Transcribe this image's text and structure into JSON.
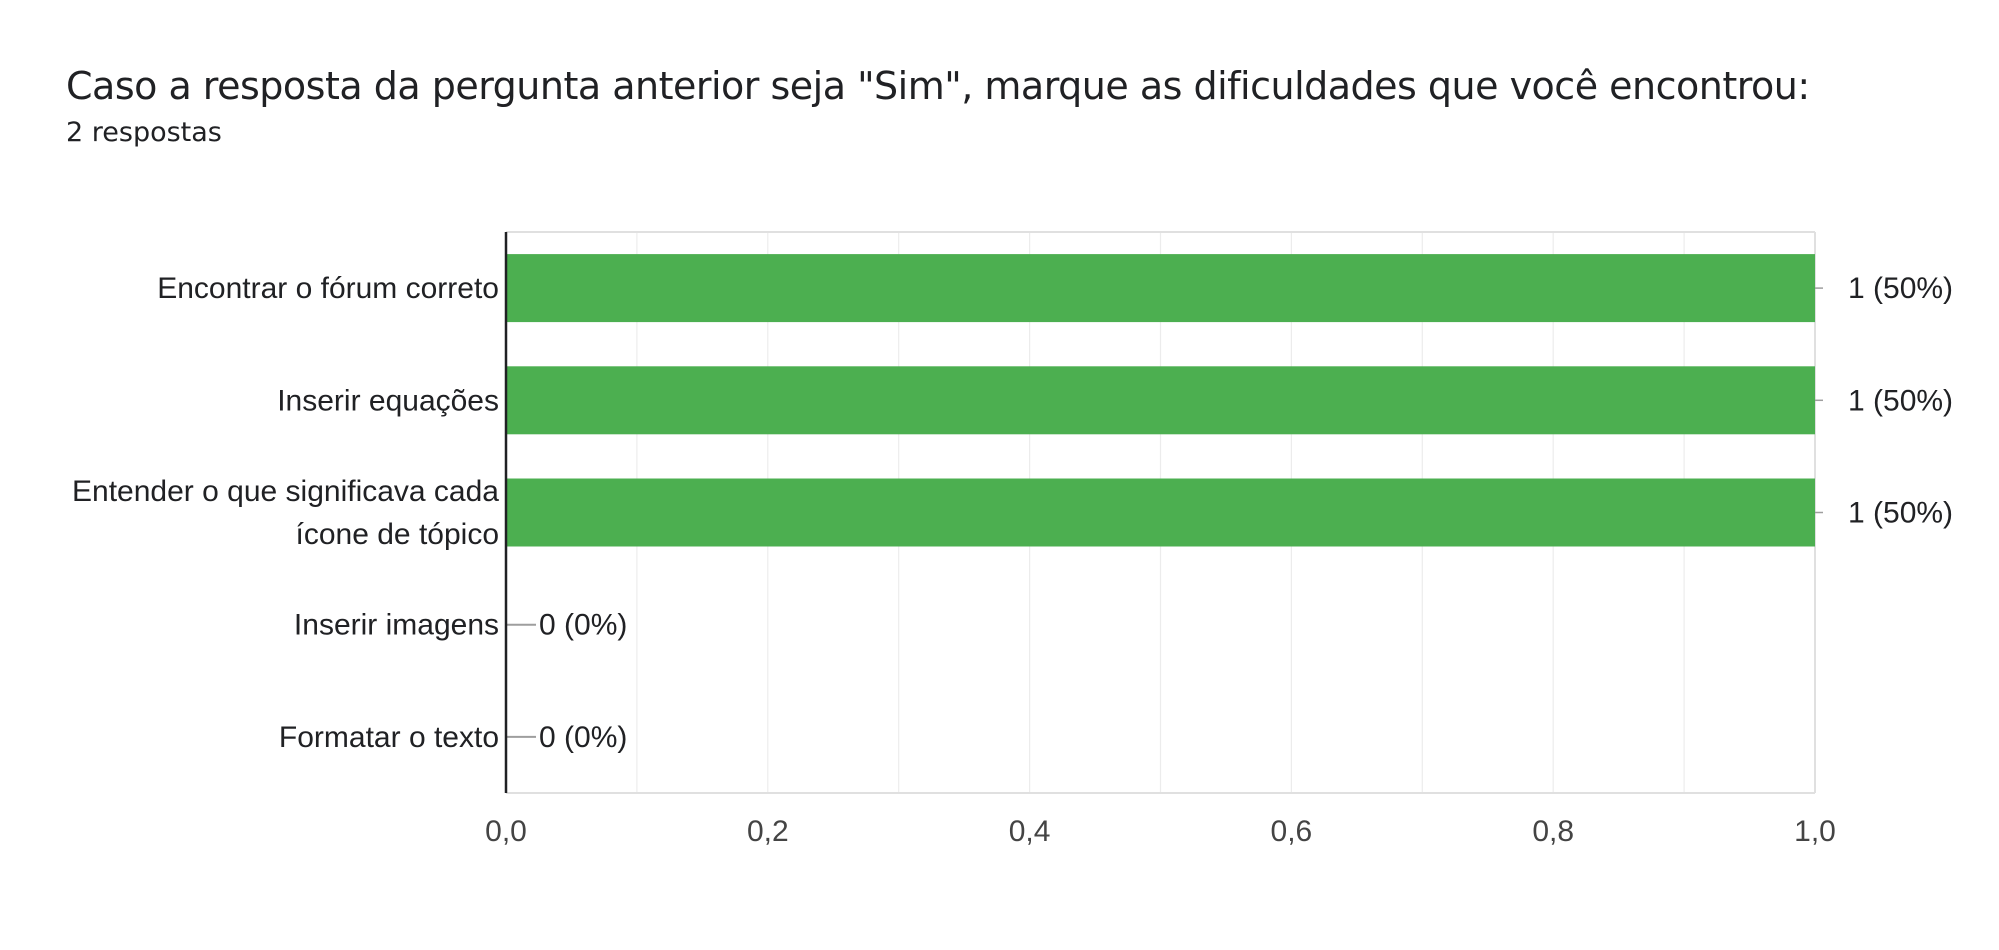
{
  "header": {
    "title": "Caso a resposta da pergunta anterior seja \"Sim\", marque as dificuldades que você encontrou:",
    "subtitle": "2 respostas"
  },
  "chart_data": {
    "type": "bar",
    "orientation": "horizontal",
    "categories": [
      [
        "Encontrar o fórum correto"
      ],
      [
        "Inserir equações"
      ],
      [
        "Entender o que significava cada",
        "ícone de tópico"
      ],
      [
        "Inserir imagens"
      ],
      [
        "Formatar o texto"
      ]
    ],
    "values": [
      1,
      1,
      1,
      0,
      0
    ],
    "value_labels": [
      "1 (50%)",
      "1 (50%)",
      "1 (50%)",
      "0 (0%)",
      "0 (0%)"
    ],
    "xlim": [
      0,
      1
    ],
    "x_ticks": [
      0,
      0.2,
      0.4,
      0.6,
      0.8,
      1.0
    ],
    "x_tick_labels": [
      "0,0",
      "0,2",
      "0,4",
      "0,6",
      "0,8",
      "1,0"
    ],
    "bar_color": "#4caf50",
    "grid": true
  }
}
